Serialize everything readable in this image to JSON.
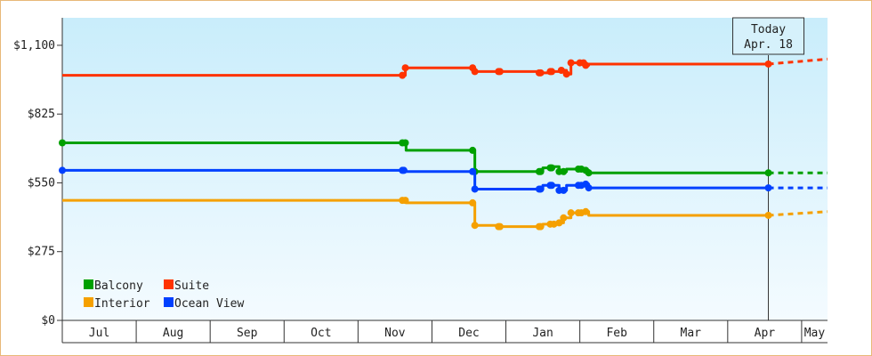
{
  "chart_data": {
    "type": "line",
    "title": "",
    "xlabel": "",
    "ylabel": "",
    "ylim": [
      0,
      1210
    ],
    "y_ticks": [
      {
        "value": 0,
        "label": "$0"
      },
      {
        "value": 275,
        "label": "$275"
      },
      {
        "value": 550,
        "label": "$550"
      },
      {
        "value": 825,
        "label": "$825"
      },
      {
        "value": 1100,
        "label": "$1,100"
      }
    ],
    "months": [
      "Jul",
      "Aug",
      "Sep",
      "Oct",
      "Nov",
      "Dec",
      "Jan",
      "Feb",
      "Mar",
      "Apr",
      "May"
    ],
    "x_domain": [
      0,
      10.35
    ],
    "today": {
      "line1": "Today",
      "line2": "Apr. 18",
      "x": 9.55
    },
    "grid": false,
    "legend_position": "bottom-left",
    "series": [
      {
        "name": "Suite",
        "color": "#ff3300",
        "values": [
          [
            0.0,
            980
          ],
          [
            4.6,
            980
          ],
          [
            4.64,
            1010
          ],
          [
            5.55,
            1010
          ],
          [
            5.58,
            995
          ],
          [
            5.9,
            995
          ],
          [
            6.45,
            990
          ],
          [
            6.6,
            995
          ],
          [
            6.75,
            1000
          ],
          [
            6.82,
            985
          ],
          [
            6.88,
            1030
          ],
          [
            7.05,
            1030
          ],
          [
            7.08,
            1020
          ],
          [
            7.12,
            1025
          ],
          [
            9.55,
            1025
          ]
        ],
        "projection": [
          [
            9.55,
            1025
          ],
          [
            10.35,
            1045
          ]
        ]
      },
      {
        "name": "Balcony",
        "color": "#00a000",
        "values": [
          [
            0.0,
            710
          ],
          [
            4.6,
            710
          ],
          [
            4.65,
            680
          ],
          [
            5.55,
            680
          ],
          [
            5.58,
            595
          ],
          [
            6.45,
            595
          ],
          [
            6.5,
            610
          ],
          [
            6.65,
            615
          ],
          [
            6.72,
            595
          ],
          [
            6.82,
            605
          ],
          [
            7.0,
            605
          ],
          [
            7.08,
            600
          ],
          [
            7.12,
            590
          ],
          [
            9.55,
            590
          ]
        ],
        "projection": [
          [
            9.55,
            590
          ],
          [
            10.35,
            590
          ]
        ]
      },
      {
        "name": "Ocean View",
        "color": "#0040ff",
        "values": [
          [
            0.0,
            600
          ],
          [
            4.6,
            600
          ],
          [
            4.65,
            595
          ],
          [
            5.55,
            595
          ],
          [
            5.58,
            525
          ],
          [
            6.45,
            525
          ],
          [
            6.5,
            540
          ],
          [
            6.65,
            540
          ],
          [
            6.72,
            520
          ],
          [
            6.82,
            540
          ],
          [
            7.0,
            540
          ],
          [
            7.08,
            545
          ],
          [
            7.12,
            530
          ],
          [
            9.55,
            530
          ]
        ],
        "projection": [
          [
            9.55,
            530
          ],
          [
            10.35,
            530
          ]
        ]
      },
      {
        "name": "Interior",
        "color": "#f5a000",
        "values": [
          [
            0.0,
            480
          ],
          [
            4.6,
            480
          ],
          [
            4.65,
            470
          ],
          [
            5.55,
            470
          ],
          [
            5.58,
            380
          ],
          [
            5.9,
            375
          ],
          [
            6.45,
            375
          ],
          [
            6.5,
            385
          ],
          [
            6.72,
            390
          ],
          [
            6.78,
            410
          ],
          [
            6.88,
            430
          ],
          [
            7.05,
            435
          ],
          [
            7.12,
            420
          ],
          [
            9.55,
            420
          ]
        ],
        "projection": [
          [
            9.55,
            420
          ],
          [
            10.35,
            435
          ]
        ]
      }
    ],
    "markers": {
      "Suite": [
        4.6,
        4.64,
        5.55,
        5.58,
        5.9,
        5.92,
        6.45,
        6.47,
        6.6,
        6.62,
        6.75,
        6.82,
        6.88,
        7.0,
        7.05,
        7.08,
        9.55
      ],
      "Balcony": [
        0.0,
        4.6,
        4.64,
        5.55,
        5.58,
        6.45,
        6.47,
        6.6,
        6.62,
        6.72,
        6.78,
        6.98,
        7.02,
        7.08,
        7.12,
        9.55
      ],
      "Ocean View": [
        0.0,
        4.6,
        4.62,
        5.55,
        5.58,
        6.45,
        6.47,
        6.6,
        6.62,
        6.72,
        6.78,
        6.98,
        7.02,
        7.08,
        7.12,
        9.55
      ],
      "Interior": [
        4.6,
        4.64,
        5.55,
        5.58,
        5.9,
        5.92,
        6.45,
        6.47,
        6.6,
        6.65,
        6.72,
        6.78,
        6.88,
        6.98,
        7.02,
        7.08,
        9.55
      ]
    },
    "legend": [
      {
        "name": "Balcony",
        "color": "#00a000"
      },
      {
        "name": "Suite",
        "color": "#ff3300"
      },
      {
        "name": "Interior",
        "color": "#f5a000"
      },
      {
        "name": "Ocean View",
        "color": "#0040ff"
      }
    ]
  }
}
